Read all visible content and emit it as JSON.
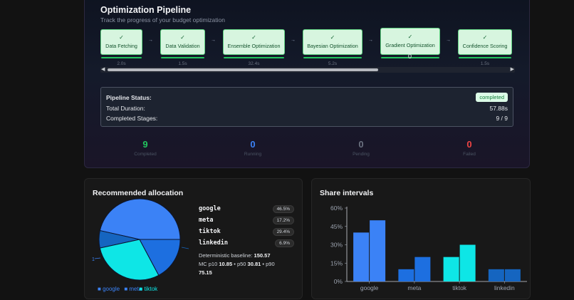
{
  "pipeline": {
    "title": "Optimization Pipeline",
    "subtitle": "Track the progress of your budget optimization",
    "stages": [
      {
        "label": "Data Fetching",
        "duration": "2.0s"
      },
      {
        "label": "Data Validation",
        "duration": "1.5s"
      },
      {
        "label": "Ensemble Optimization",
        "duration": "32.4s"
      },
      {
        "label": "Bayesian Optimization",
        "duration": "5.2s"
      },
      {
        "label": "Gradient Optimization",
        "duration": "0"
      },
      {
        "label": "Confidence Scoring",
        "duration": "1.5s"
      }
    ],
    "check_glyph": "✓",
    "arrow_glyph": "→",
    "status": {
      "status_label": "Pipeline Status:",
      "status_value": "completed",
      "duration_label": "Total Duration:",
      "duration_value": "57.88s",
      "stages_label": "Completed Stages:",
      "stages_value": "9 / 9"
    },
    "stats": [
      {
        "value": "9",
        "label": "Completed",
        "color": "#22c55e"
      },
      {
        "value": "0",
        "label": "Running",
        "color": "#3b82f6"
      },
      {
        "value": "0",
        "label": "Pending",
        "color": "#6b7280"
      },
      {
        "value": "0",
        "label": "Failed",
        "color": "#ef4444"
      }
    ]
  },
  "allocation": {
    "title": "Recommended allocation",
    "channels": [
      {
        "name": "google",
        "pct": "46.5%"
      },
      {
        "name": "meta",
        "pct": "17.2%"
      },
      {
        "name": "tiktok",
        "pct": "29.4%"
      },
      {
        "name": "linkedin",
        "pct": "6.9%"
      }
    ],
    "baseline_label": "Deterministic baseline:",
    "baseline_value": "150.57",
    "mc_prefix": "MC p10",
    "p10": "10.85",
    "p50_label": "p50",
    "p50": "30.81",
    "p90_label": "p90",
    "p90": "75.15",
    "pie_outside_label": "1",
    "legend": [
      {
        "name": "google",
        "color": "#3b82f6"
      },
      {
        "name": "meta",
        "color": "#1d6fe0"
      },
      {
        "name": "tiktok",
        "color": "#0ee6e6"
      }
    ]
  },
  "chart_data": {
    "type": "bar",
    "title": "Share intervals",
    "categories": [
      "google",
      "meta",
      "tiktok",
      "linkedin"
    ],
    "series": [
      {
        "values": [
          40,
          10,
          20,
          10
        ]
      },
      {
        "values": [
          50,
          20,
          30,
          10
        ]
      }
    ],
    "bar_colors": [
      "#3b82f6",
      "#1d6fe0",
      "#0ee6e6",
      "#1565c0"
    ],
    "ylim": [
      0,
      60
    ],
    "yticks": [
      "0%",
      "15%",
      "30%",
      "45%",
      "60%"
    ],
    "ytick_values": [
      0,
      15,
      30,
      45,
      60
    ],
    "grid": false,
    "legend": "none"
  }
}
